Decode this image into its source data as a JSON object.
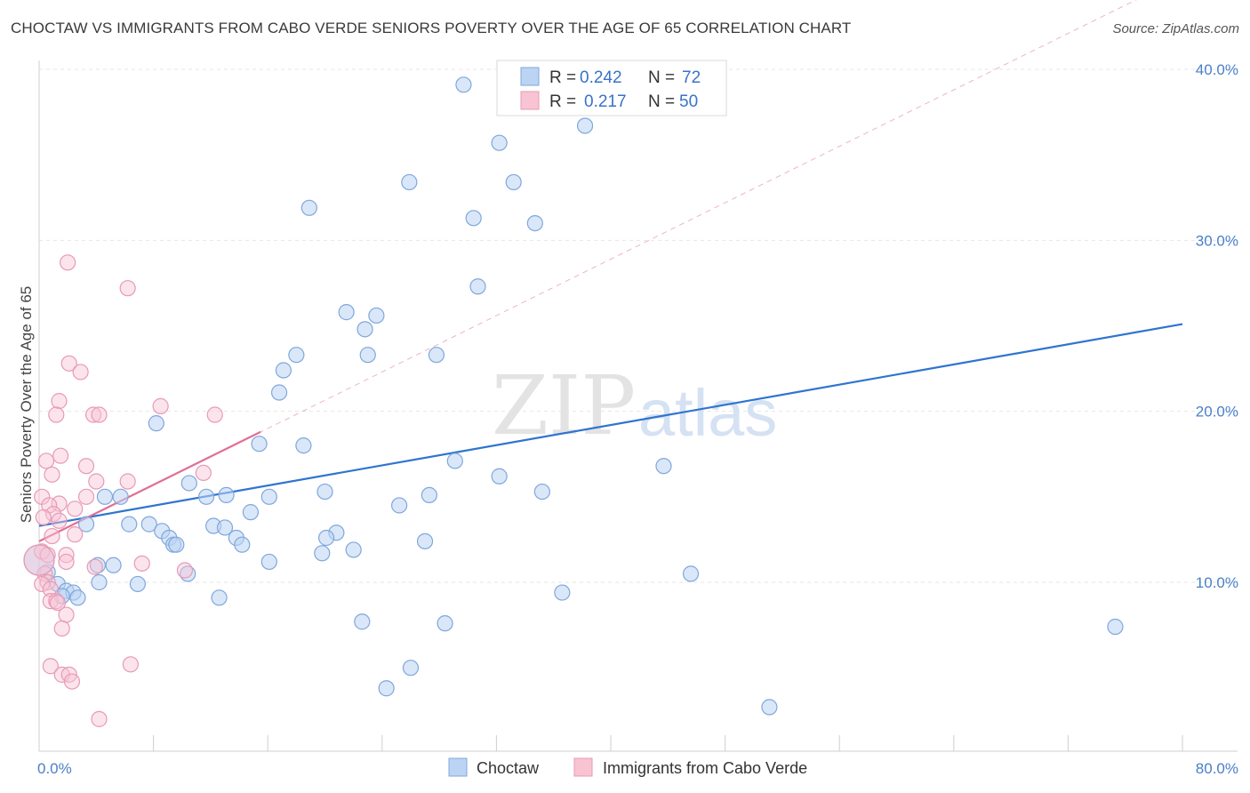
{
  "title": "CHOCTAW VS IMMIGRANTS FROM CABO VERDE SENIORS POVERTY OVER THE AGE OF 65 CORRELATION CHART",
  "source": "Source: ZipAtlas.com",
  "watermark": {
    "zip": "ZIP",
    "atlas": "atlas"
  },
  "legend": {
    "rows": [
      {
        "r_label": "R =",
        "r_value": "0.242",
        "n_label": "N =",
        "n_value": "72"
      },
      {
        "r_label": "R =",
        "r_value": "0.217",
        "n_label": "N =",
        "n_value": "50"
      }
    ]
  },
  "colors": {
    "blue": "#2f74d0",
    "blue_fill": "#bcd4f4",
    "pink": "#e06f96",
    "pink_fill": "#f8c4d4",
    "tick": "#4a7fc8"
  },
  "chart_data": {
    "type": "scatter",
    "title": "CHOCTAW VS IMMIGRANTS FROM CABO VERDE SENIORS POVERTY OVER THE AGE OF 65 CORRELATION CHART",
    "xlabel": "",
    "ylabel": "Seniors Poverty Over the Age of 65",
    "xlim": [
      0,
      80
    ],
    "ylim": [
      0,
      42
    ],
    "x_tick_labels": [
      "0.0%",
      "80.0%"
    ],
    "y_ticks": [
      10,
      20,
      30,
      40
    ],
    "y_tick_labels": [
      "10.0%",
      "20.0%",
      "30.0%",
      "40.0%"
    ],
    "grid": true,
    "legend_position": "top-center",
    "series": [
      {
        "name": "Choctaw",
        "r": 0.242,
        "n": 72,
        "points": [
          [
            29.7,
            39.1
          ],
          [
            32.2,
            35.7
          ],
          [
            38.2,
            36.7
          ],
          [
            25.9,
            33.4
          ],
          [
            33.2,
            33.4
          ],
          [
            18.9,
            31.9
          ],
          [
            30.4,
            31.3
          ],
          [
            34.7,
            31.0
          ],
          [
            30.7,
            27.3
          ],
          [
            21.5,
            25.8
          ],
          [
            23.6,
            25.6
          ],
          [
            22.8,
            24.8
          ],
          [
            18.0,
            23.3
          ],
          [
            23.0,
            23.3
          ],
          [
            27.8,
            23.3
          ],
          [
            17.1,
            22.4
          ],
          [
            16.8,
            21.1
          ],
          [
            8.2,
            19.3
          ],
          [
            15.4,
            18.1
          ],
          [
            18.5,
            18.0
          ],
          [
            29.1,
            17.1
          ],
          [
            43.7,
            16.8
          ],
          [
            32.2,
            16.2
          ],
          [
            10.5,
            15.8
          ],
          [
            13.1,
            15.1
          ],
          [
            11.7,
            15.0
          ],
          [
            16.1,
            15.0
          ],
          [
            20.0,
            15.3
          ],
          [
            27.3,
            15.1
          ],
          [
            35.2,
            15.3
          ],
          [
            5.7,
            15.0
          ],
          [
            4.6,
            15.0
          ],
          [
            25.2,
            14.5
          ],
          [
            14.8,
            14.1
          ],
          [
            3.3,
            13.4
          ],
          [
            6.3,
            13.4
          ],
          [
            7.7,
            13.4
          ],
          [
            12.2,
            13.3
          ],
          [
            13.0,
            13.2
          ],
          [
            8.6,
            13.0
          ],
          [
            20.8,
            12.9
          ],
          [
            9.1,
            12.6
          ],
          [
            13.8,
            12.6
          ],
          [
            20.1,
            12.6
          ],
          [
            27.0,
            12.4
          ],
          [
            9.4,
            12.2
          ],
          [
            9.6,
            12.2
          ],
          [
            14.2,
            12.2
          ],
          [
            19.8,
            11.7
          ],
          [
            22.0,
            11.9
          ],
          [
            16.1,
            11.2
          ],
          [
            4.1,
            11.0
          ],
          [
            5.2,
            11.0
          ],
          [
            0.6,
            10.6
          ],
          [
            10.4,
            10.5
          ],
          [
            45.6,
            10.5
          ],
          [
            4.2,
            10.0
          ],
          [
            6.9,
            9.9
          ],
          [
            1.3,
            9.9
          ],
          [
            1.9,
            9.5
          ],
          [
            2.4,
            9.4
          ],
          [
            1.6,
            9.2
          ],
          [
            2.7,
            9.1
          ],
          [
            12.6,
            9.1
          ],
          [
            36.6,
            9.4
          ],
          [
            22.6,
            7.7
          ],
          [
            28.4,
            7.6
          ],
          [
            75.3,
            7.4
          ],
          [
            26.0,
            5.0
          ],
          [
            24.3,
            3.8
          ],
          [
            51.1,
            2.7
          ],
          [
            0.0,
            11.3
          ]
        ]
      },
      {
        "name": "Immigrants from Cabo Verde",
        "r": 0.217,
        "n": 50,
        "points": [
          [
            2.0,
            28.7
          ],
          [
            6.2,
            27.2
          ],
          [
            2.1,
            22.8
          ],
          [
            2.9,
            22.3
          ],
          [
            1.4,
            20.6
          ],
          [
            8.5,
            20.3
          ],
          [
            1.2,
            19.8
          ],
          [
            3.8,
            19.8
          ],
          [
            4.2,
            19.8
          ],
          [
            12.3,
            19.8
          ],
          [
            1.5,
            17.4
          ],
          [
            0.5,
            17.1
          ],
          [
            3.3,
            16.8
          ],
          [
            11.5,
            16.4
          ],
          [
            0.9,
            16.3
          ],
          [
            4.0,
            15.9
          ],
          [
            6.2,
            15.9
          ],
          [
            0.2,
            15.0
          ],
          [
            3.3,
            15.0
          ],
          [
            1.4,
            14.6
          ],
          [
            0.7,
            14.5
          ],
          [
            2.5,
            14.3
          ],
          [
            1.0,
            14.0
          ],
          [
            1.4,
            13.6
          ],
          [
            0.3,
            13.8
          ],
          [
            2.5,
            12.8
          ],
          [
            0.9,
            12.7
          ],
          [
            0.2,
            11.8
          ],
          [
            0.6,
            11.6
          ],
          [
            1.9,
            11.6
          ],
          [
            1.9,
            11.2
          ],
          [
            7.2,
            11.1
          ],
          [
            3.9,
            10.9
          ],
          [
            10.2,
            10.7
          ],
          [
            0.4,
            10.5
          ],
          [
            0.6,
            10.0
          ],
          [
            0.2,
            9.9
          ],
          [
            0.8,
            9.6
          ],
          [
            0.8,
            8.9
          ],
          [
            1.2,
            8.9
          ],
          [
            1.3,
            8.8
          ],
          [
            1.9,
            8.1
          ],
          [
            1.6,
            7.3
          ],
          [
            0.8,
            5.1
          ],
          [
            6.4,
            5.2
          ],
          [
            1.6,
            4.6
          ],
          [
            2.1,
            4.6
          ],
          [
            2.3,
            4.2
          ],
          [
            4.2,
            2.0
          ],
          [
            0.0,
            11.3
          ]
        ]
      }
    ],
    "trend_lines": [
      {
        "series": "Choctaw",
        "x": [
          0,
          80
        ],
        "y": [
          13.3,
          25.1
        ]
      },
      {
        "series": "Immigrants from Cabo Verde",
        "x": [
          0,
          15.5
        ],
        "y": [
          12.4,
          18.8
        ],
        "extended_x": [
          0,
          80
        ],
        "extended_y": [
          12.4,
          45.4
        ]
      }
    ]
  },
  "bottom_legend": [
    "Choctaw",
    "Immigrants from Cabo Verde"
  ]
}
